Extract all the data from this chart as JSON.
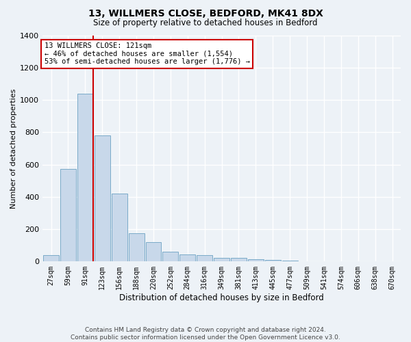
{
  "title_line1": "13, WILLMERS CLOSE, BEDFORD, MK41 8DX",
  "title_line2": "Size of property relative to detached houses in Bedford",
  "xlabel": "Distribution of detached houses by size in Bedford",
  "ylabel": "Number of detached properties",
  "annotation_line1": "13 WILLMERS CLOSE: 121sqm",
  "annotation_line2": "← 46% of detached houses are smaller (1,554)",
  "annotation_line3": "53% of semi-detached houses are larger (1,776) →",
  "footer_line1": "Contains HM Land Registry data © Crown copyright and database right 2024.",
  "footer_line2": "Contains public sector information licensed under the Open Government Licence v3.0.",
  "bar_color": "#c8d8ea",
  "bar_edge_color": "#7aaac8",
  "highlight_color": "#cc0000",
  "background_color": "#edf2f7",
  "grid_color": "#ffffff",
  "categories": [
    "27sqm",
    "59sqm",
    "91sqm",
    "123sqm",
    "156sqm",
    "188sqm",
    "220sqm",
    "252sqm",
    "284sqm",
    "316sqm",
    "349sqm",
    "381sqm",
    "413sqm",
    "445sqm",
    "477sqm",
    "509sqm",
    "541sqm",
    "574sqm",
    "606sqm",
    "638sqm",
    "670sqm"
  ],
  "values": [
    40,
    575,
    1040,
    780,
    420,
    175,
    120,
    60,
    45,
    40,
    22,
    22,
    15,
    10,
    5,
    3,
    0,
    0,
    0,
    0,
    0
  ],
  "ylim": [
    0,
    1400
  ],
  "yticks": [
    0,
    200,
    400,
    600,
    800,
    1000,
    1200,
    1400
  ],
  "title_fontsize": 10,
  "subtitle_fontsize": 8.5,
  "xlabel_fontsize": 8.5,
  "ylabel_fontsize": 8,
  "tick_fontsize": 7,
  "footer_fontsize": 6.5,
  "ann_fontsize": 7.5
}
